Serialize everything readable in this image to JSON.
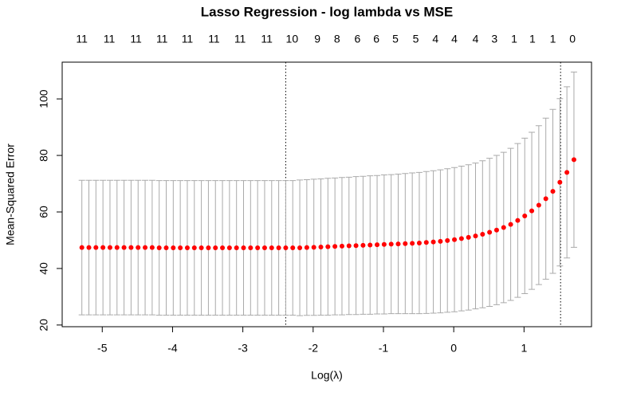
{
  "chart_data": {
    "type": "errorbar",
    "title": "Lasso Regression - log lambda vs MSE",
    "x_label": "Log(λ)",
    "y_label": "Mean-Squared Error",
    "x": [
      -5.29,
      -5.19,
      -5.09,
      -4.99,
      -4.89,
      -4.79,
      -4.69,
      -4.59,
      -4.49,
      -4.39,
      -4.29,
      -4.19,
      -4.09,
      -3.99,
      -3.89,
      -3.79,
      -3.69,
      -3.59,
      -3.49,
      -3.39,
      -3.29,
      -3.19,
      -3.09,
      -2.99,
      -2.89,
      -2.79,
      -2.69,
      -2.59,
      -2.49,
      -2.39,
      -2.29,
      -2.19,
      -2.09,
      -1.99,
      -1.89,
      -1.79,
      -1.69,
      -1.59,
      -1.49,
      -1.39,
      -1.29,
      -1.19,
      -1.09,
      -0.99,
      -0.89,
      -0.79,
      -0.69,
      -0.59,
      -0.49,
      -0.39,
      -0.29,
      -0.19,
      -0.09,
      0.01,
      0.11,
      0.21,
      0.31,
      0.41,
      0.51,
      0.61,
      0.71,
      0.81,
      0.91,
      1.01,
      1.11,
      1.21,
      1.31,
      1.41,
      1.51,
      1.61,
      1.71
    ],
    "values": [
      47.4,
      47.4,
      47.4,
      47.4,
      47.4,
      47.4,
      47.4,
      47.4,
      47.4,
      47.4,
      47.4,
      47.3,
      47.3,
      47.3,
      47.3,
      47.3,
      47.3,
      47.3,
      47.3,
      47.3,
      47.3,
      47.3,
      47.3,
      47.3,
      47.3,
      47.3,
      47.3,
      47.3,
      47.3,
      47.3,
      47.3,
      47.3,
      47.4,
      47.5,
      47.6,
      47.7,
      47.8,
      47.9,
      48.0,
      48.1,
      48.2,
      48.3,
      48.4,
      48.5,
      48.6,
      48.7,
      48.8,
      48.9,
      49.0,
      49.2,
      49.4,
      49.6,
      49.9,
      50.2,
      50.6,
      51.0,
      51.5,
      52.1,
      52.8,
      53.6,
      54.5,
      55.6,
      57.0,
      58.6,
      60.4,
      62.4,
      64.7,
      67.3,
      70.5,
      74.0,
      78.5
    ],
    "errors": [
      23.8,
      23.8,
      23.8,
      23.8,
      23.8,
      23.8,
      23.8,
      23.8,
      23.8,
      23.8,
      23.8,
      23.8,
      23.8,
      23.8,
      23.8,
      23.8,
      23.8,
      23.8,
      23.8,
      23.8,
      23.8,
      23.8,
      23.8,
      23.8,
      23.8,
      23.8,
      23.8,
      23.8,
      23.8,
      23.8,
      23.8,
      24.0,
      24.0,
      24.1,
      24.1,
      24.2,
      24.2,
      24.3,
      24.3,
      24.4,
      24.4,
      24.5,
      24.5,
      24.6,
      24.6,
      24.7,
      24.8,
      24.9,
      25.0,
      25.1,
      25.2,
      25.3,
      25.4,
      25.5,
      25.6,
      25.7,
      25.8,
      26.0,
      26.2,
      26.4,
      26.6,
      26.9,
      27.2,
      27.5,
      27.8,
      28.1,
      28.5,
      29.0,
      29.6,
      30.3,
      31.0
    ],
    "color": "#ff0000",
    "error_color": "#aaaaaa",
    "xlim": [
      -5.57,
      1.96
    ],
    "ylim": [
      19.4,
      113
    ],
    "xticks": [
      -5,
      -4,
      -3,
      -2,
      -1,
      0,
      1
    ],
    "yticks": [
      20,
      40,
      60,
      80,
      100
    ],
    "top_ticks": [
      {
        "value": -5.29,
        "label": "11"
      },
      {
        "value": -4.9,
        "label": "11"
      },
      {
        "value": -4.52,
        "label": "11"
      },
      {
        "value": -4.15,
        "label": "11"
      },
      {
        "value": -3.79,
        "label": "11"
      },
      {
        "value": -3.41,
        "label": "11"
      },
      {
        "value": -3.04,
        "label": "11"
      },
      {
        "value": -2.66,
        "label": "11"
      },
      {
        "value": -2.3,
        "label": "10"
      },
      {
        "value": -1.94,
        "label": "9"
      },
      {
        "value": -1.66,
        "label": "8"
      },
      {
        "value": -1.37,
        "label": "6"
      },
      {
        "value": -1.1,
        "label": "6"
      },
      {
        "value": -0.83,
        "label": "5"
      },
      {
        "value": -0.54,
        "label": "5"
      },
      {
        "value": -0.26,
        "label": "4"
      },
      {
        "value": 0.01,
        "label": "4"
      },
      {
        "value": 0.31,
        "label": "4"
      },
      {
        "value": 0.58,
        "label": "3"
      },
      {
        "value": 0.86,
        "label": "1"
      },
      {
        "value": 1.12,
        "label": "1"
      },
      {
        "value": 1.41,
        "label": "1"
      },
      {
        "value": 1.69,
        "label": "0"
      }
    ],
    "vlines": [
      -2.39,
      1.52
    ]
  }
}
